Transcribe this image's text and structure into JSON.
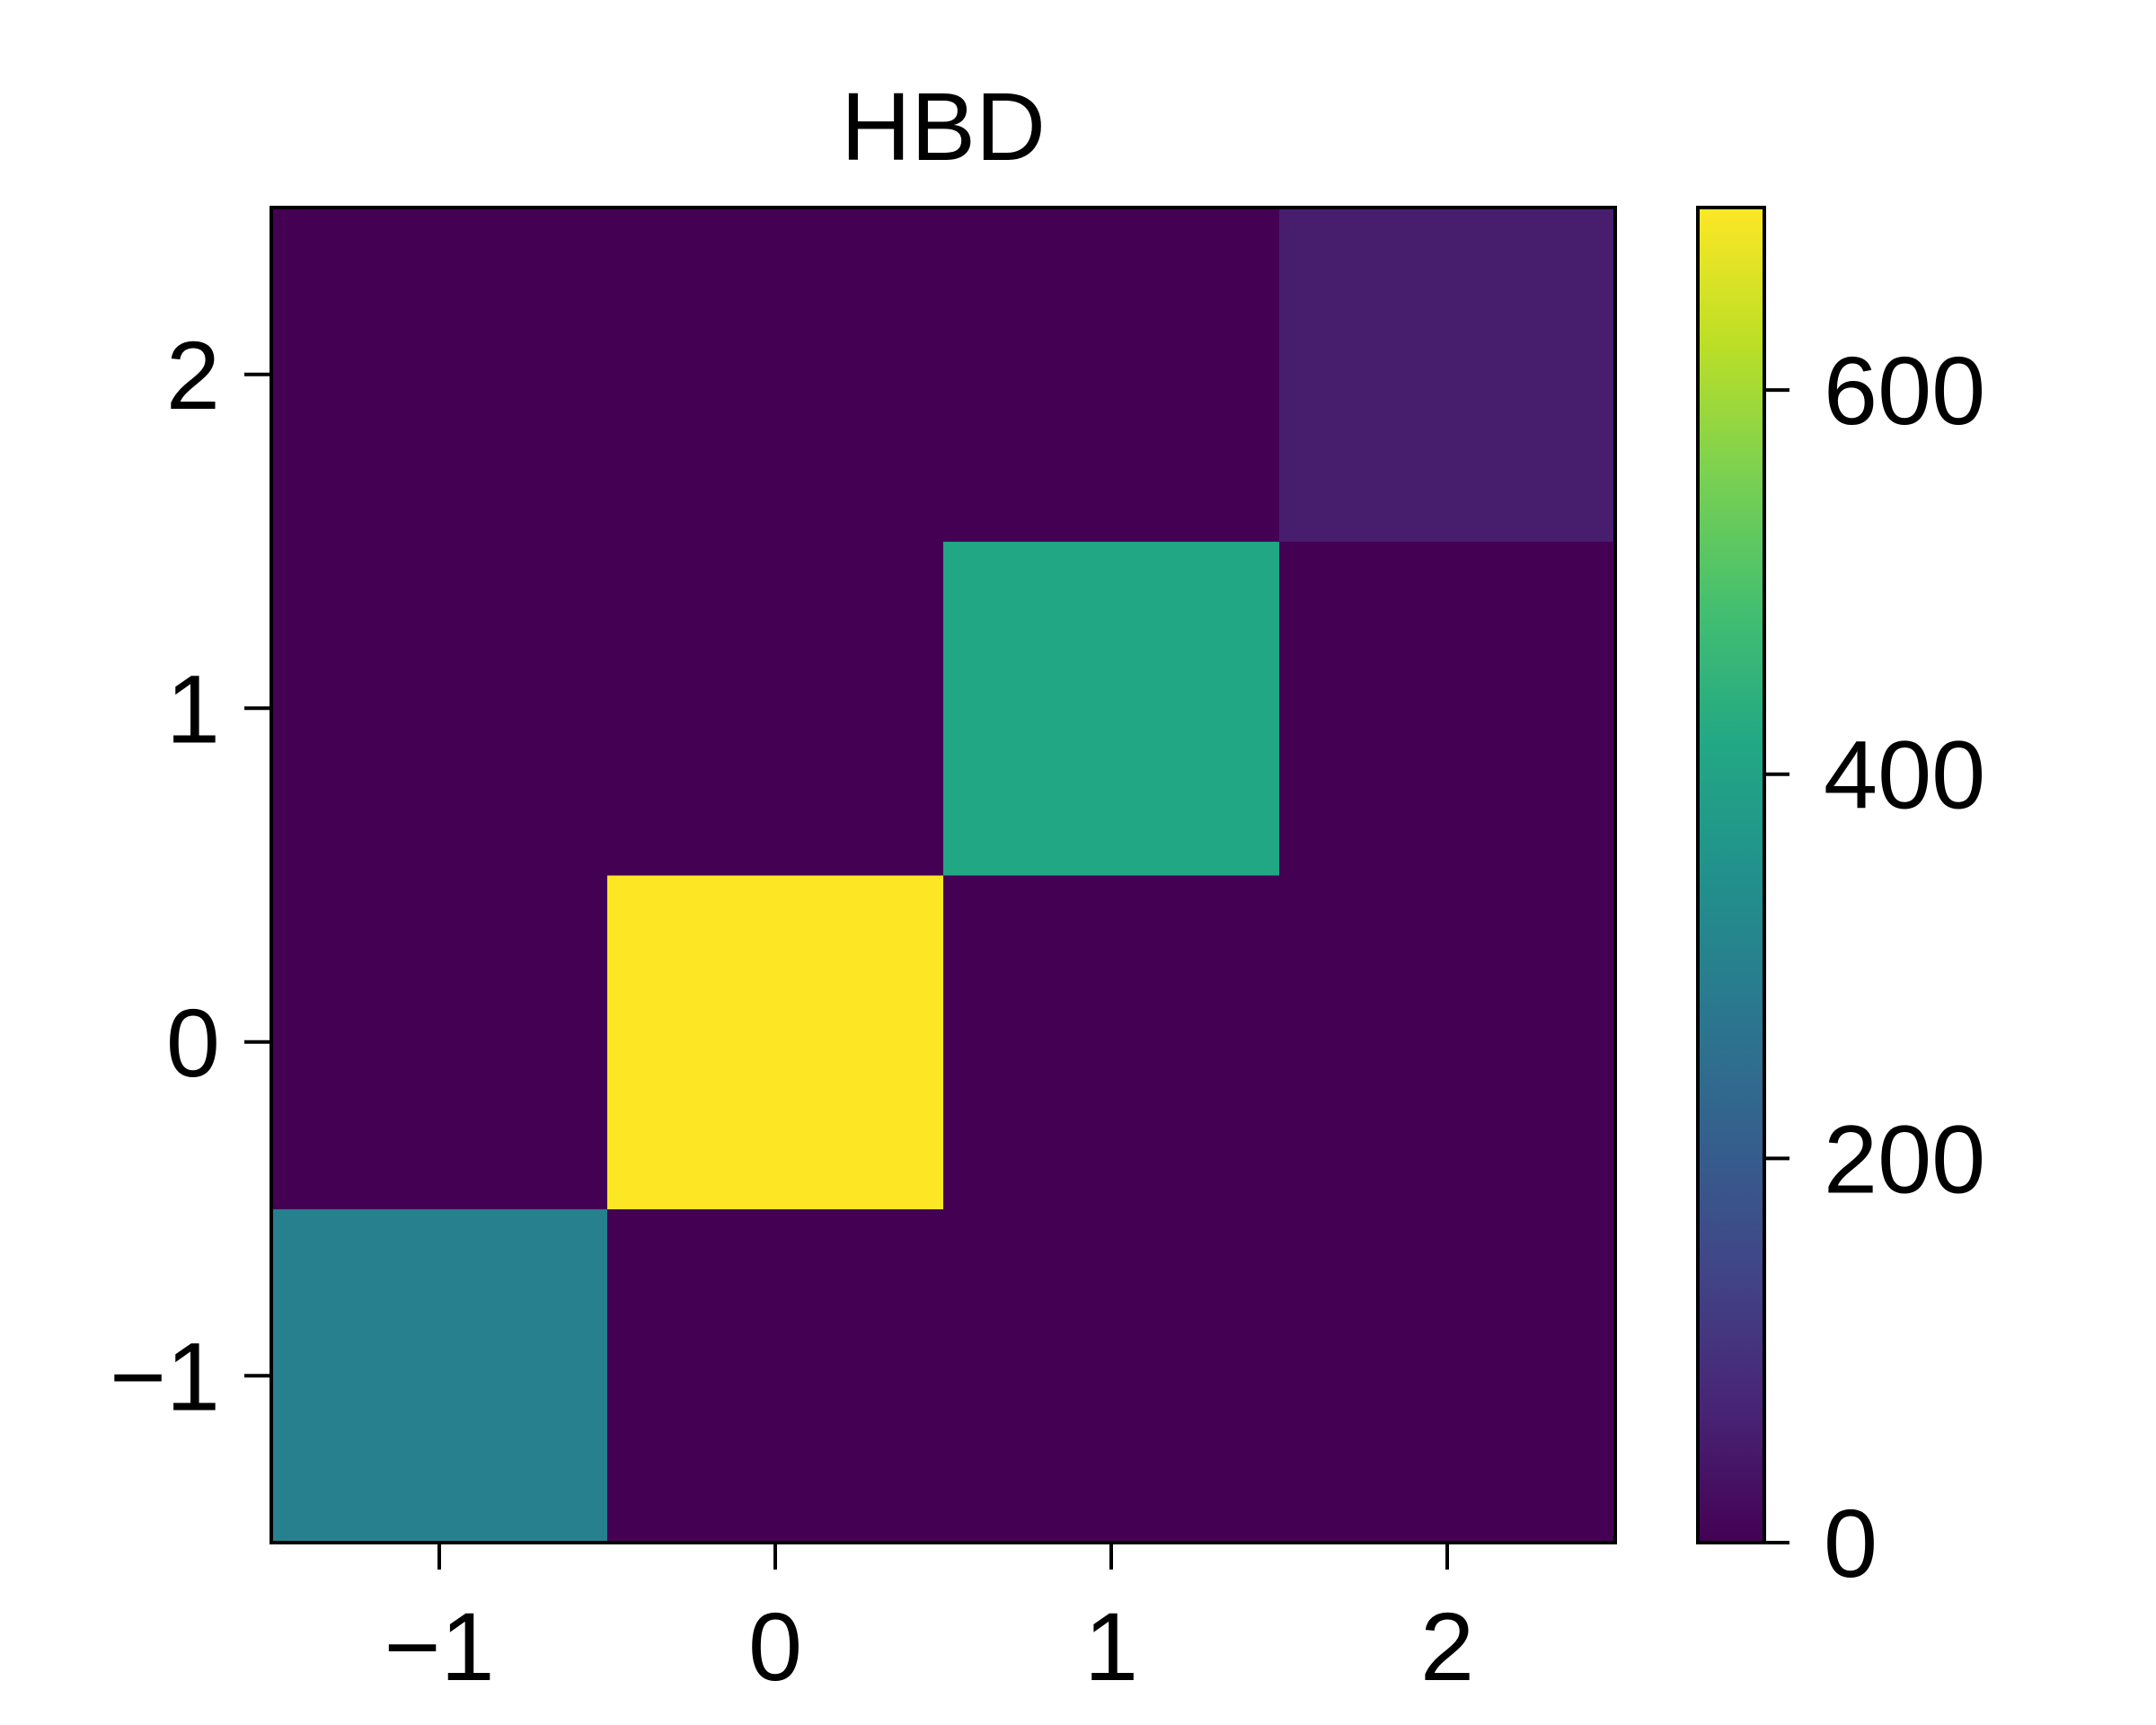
{
  "chart_data": {
    "type": "heatmap",
    "title": "HBD",
    "xlabel": "",
    "ylabel": "",
    "x": [
      -1,
      0,
      1,
      2
    ],
    "y": [
      -1,
      0,
      1,
      2
    ],
    "x_tick_labels": [
      "−1",
      "0",
      "1",
      "2"
    ],
    "y_tick_labels": [
      "−1",
      "0",
      "1",
      "2"
    ],
    "values": [
      [
        300,
        0,
        0,
        0
      ],
      [
        0,
        695,
        0,
        0
      ],
      [
        0,
        0,
        415,
        0
      ],
      [
        0,
        0,
        0,
        55
      ]
    ],
    "values_note_rows": "rows ordered by y ascending (-1,0,1,2); columns by x ascending (-1,0,1,2)",
    "colormap": "viridis",
    "colorbar": {
      "range": [
        0,
        695
      ],
      "ticks": [
        0,
        200,
        400,
        600
      ],
      "tick_labels": [
        "0",
        "200",
        "400",
        "600"
      ]
    }
  }
}
